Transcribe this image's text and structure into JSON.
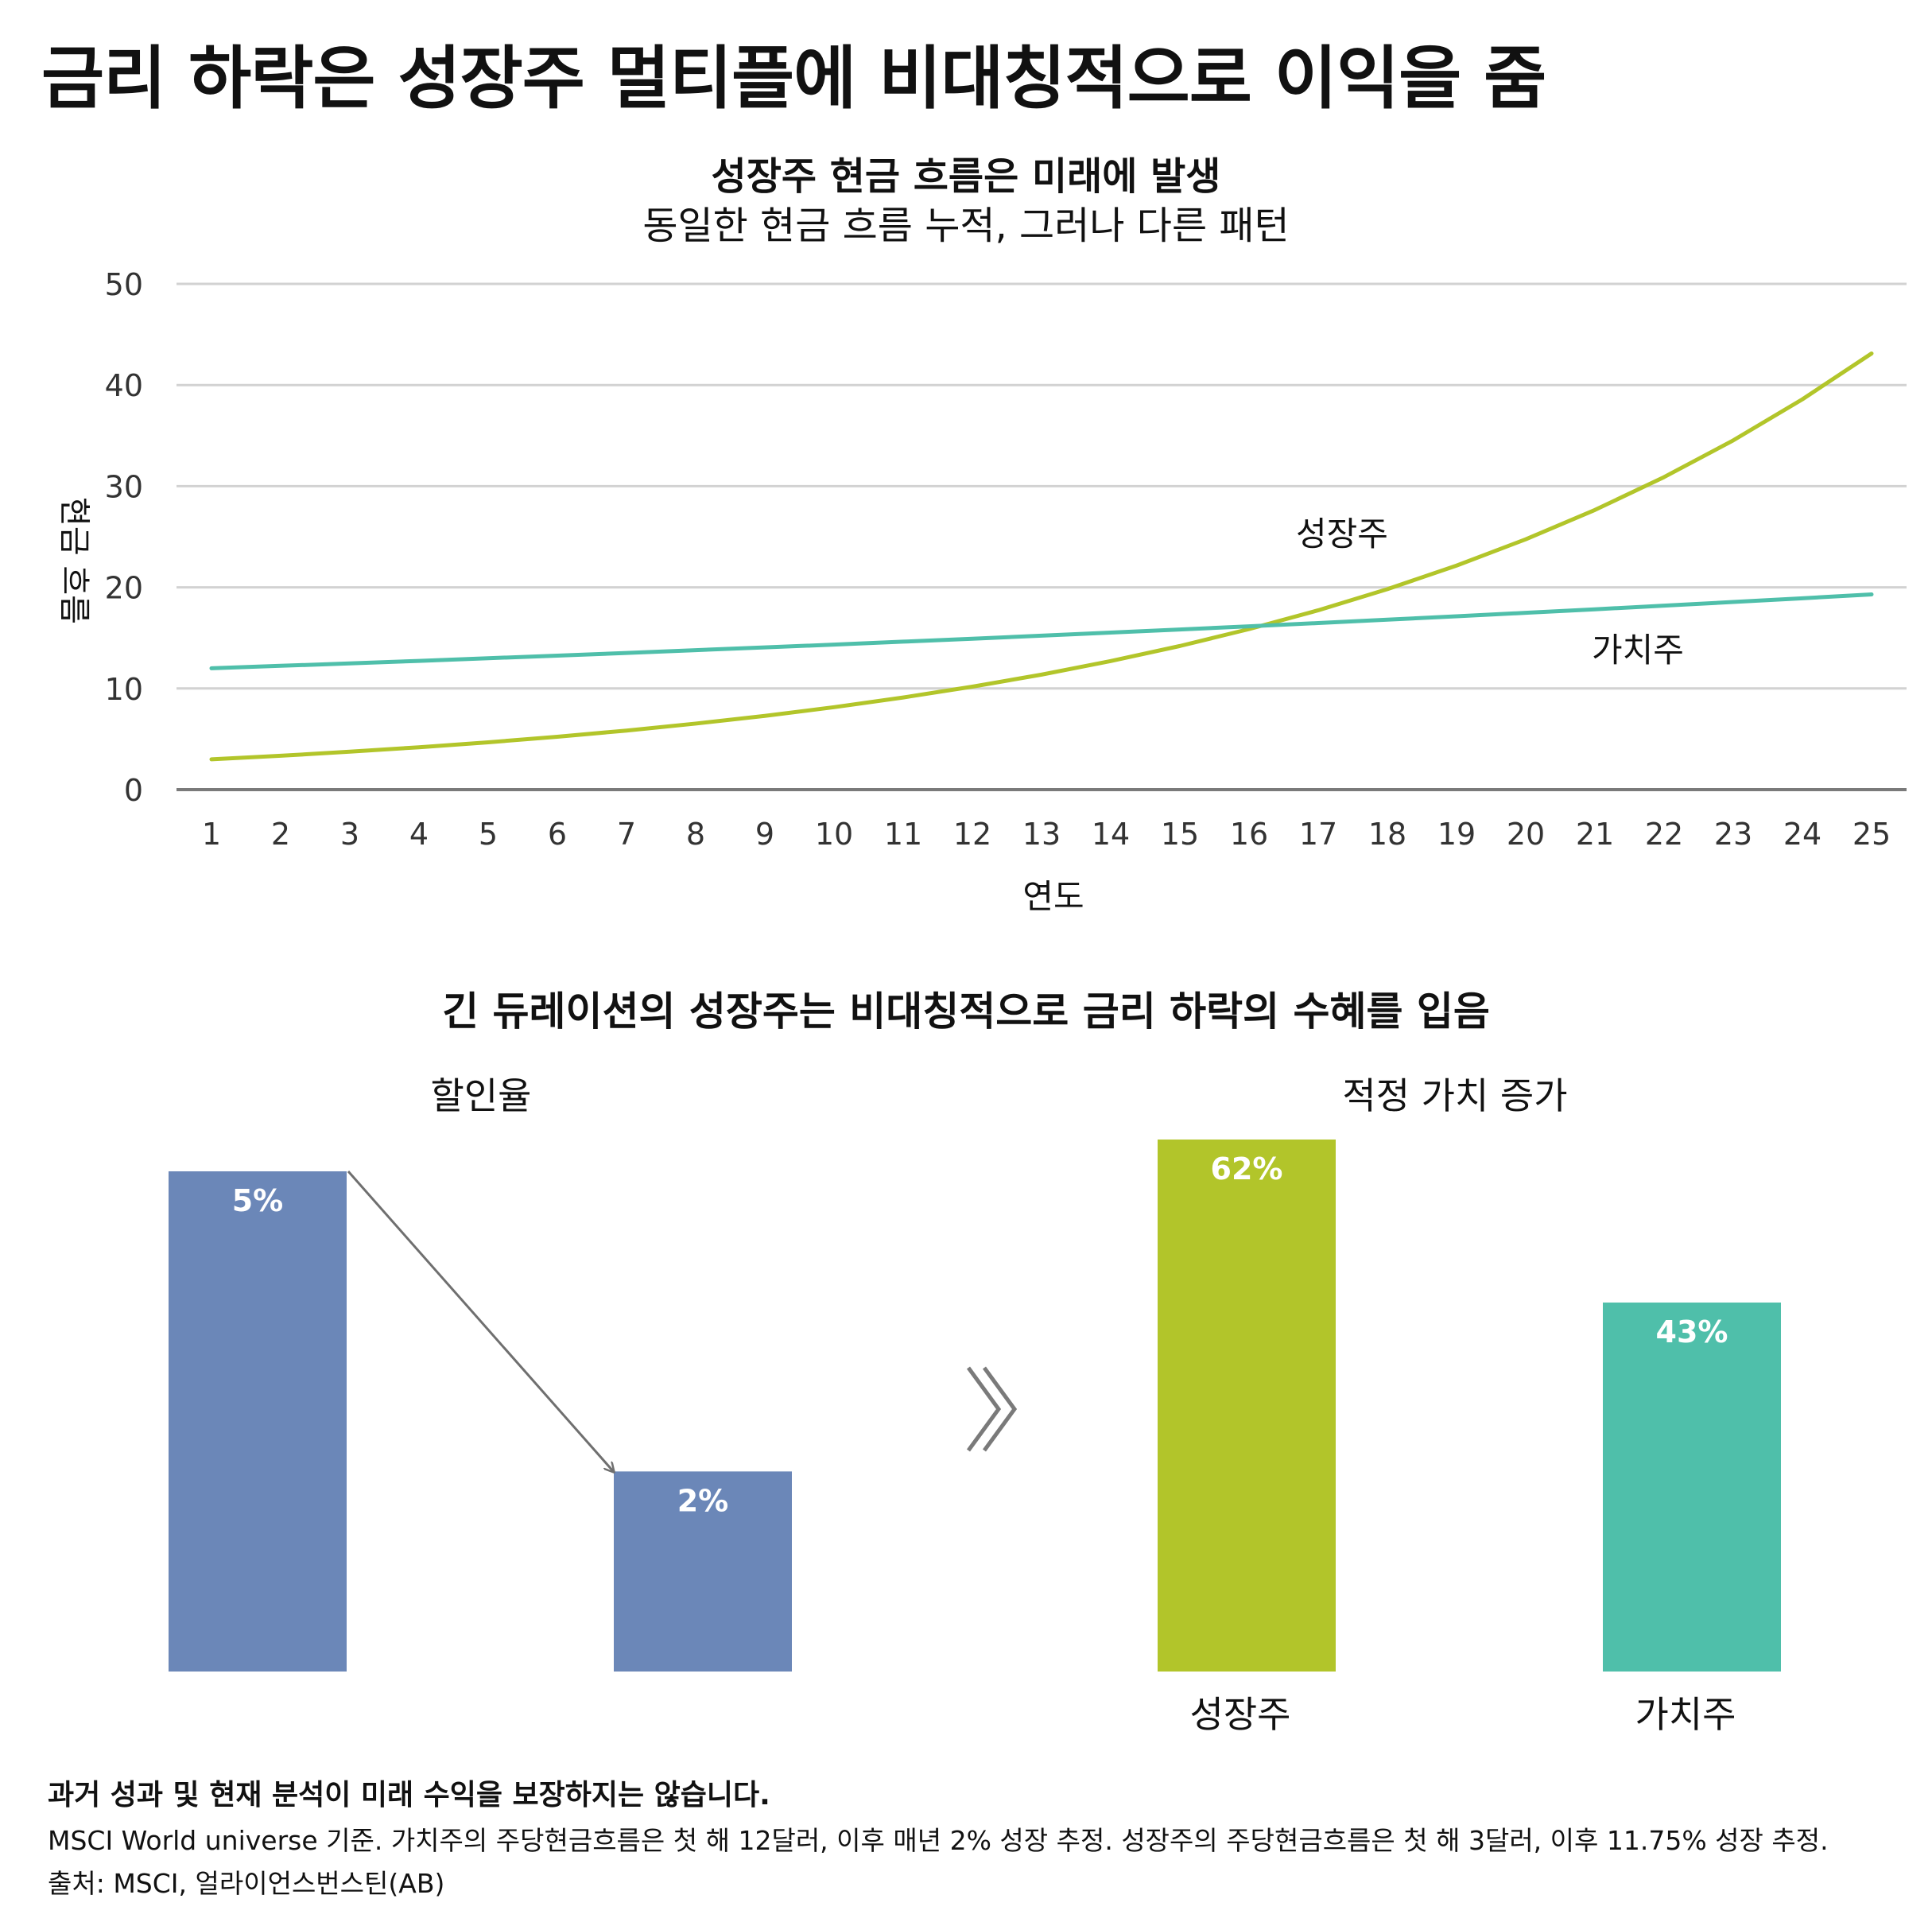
{
  "title": "금리 하락은 성장주 멀티플에 비대칭적으로 이익을 줌",
  "chart_data": [
    {
      "type": "line",
      "title": "성장주 현금 흐름은 미래에 발생",
      "subtitle": "동일한 현금 흐름 누적, 그러나 다른 패턴",
      "xlabel": "연도",
      "ylabel": "현금 흐름",
      "x": [
        1,
        2,
        3,
        4,
        5,
        6,
        7,
        8,
        9,
        10,
        11,
        12,
        13,
        14,
        15,
        16,
        17,
        18,
        19,
        20,
        21,
        22,
        23,
        24,
        25
      ],
      "ylim": [
        0,
        50
      ],
      "yticks": [
        0,
        10,
        20,
        30,
        40,
        50
      ],
      "grid": true,
      "series": [
        {
          "name": "성장주",
          "color": "#b2c52a",
          "values": [
            3.0,
            3.35,
            3.75,
            4.19,
            4.68,
            5.23,
            5.84,
            6.53,
            7.29,
            8.15,
            9.11,
            10.18,
            11.37,
            12.71,
            14.2,
            15.87,
            17.73,
            19.82,
            22.15,
            24.75,
            27.65,
            30.9,
            34.53,
            38.59,
            43.12
          ]
        },
        {
          "name": "가치주",
          "color": "#4fbfaa",
          "values": [
            12.0,
            12.24,
            12.48,
            12.73,
            12.99,
            13.25,
            13.51,
            13.79,
            14.06,
            14.34,
            14.63,
            14.92,
            15.22,
            15.53,
            15.83,
            16.15,
            16.47,
            16.8,
            17.14,
            17.48,
            17.83,
            18.19,
            18.55,
            18.92,
            19.3
          ]
        }
      ]
    },
    {
      "type": "bar",
      "title": "할인율",
      "categories": [
        "",
        ""
      ],
      "values": [
        5,
        2
      ],
      "labels": [
        "5%",
        "2%"
      ],
      "color": "#6b87b8"
    },
    {
      "type": "bar",
      "title": "적정 가치 증가",
      "categories": [
        "성장주",
        "가치주"
      ],
      "values": [
        62,
        43
      ],
      "labels": [
        "62%",
        "43%"
      ],
      "colors": [
        "#b2c52a",
        "#4fbfaa"
      ]
    }
  ],
  "section2_title": "긴 듀레이션의 성장주는 비대칭적으로 금리 하락의 수혜를 입음",
  "footer": {
    "disclaimer": "과거 성과 및 현재 분석이 미래 수익을 보장하지는 않습니다.",
    "note": "MSCI World universe 기준. 가치주의 주당현금흐름은 첫 해 12달러, 이후 매년 2% 성장 추정. 성장주의 주당현금흐름은 첫 해 3달러, 이후 11.75% 성장 추정.",
    "source": "출처: MSCI, 얼라이언스번스틴(AB)"
  }
}
